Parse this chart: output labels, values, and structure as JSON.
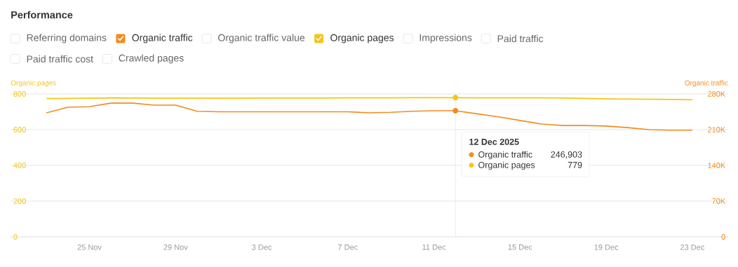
{
  "chart_data": {
    "type": "line",
    "title": "Performance",
    "ylabel": "Organic pages",
    "y2label": "Organic traffic",
    "x": [
      "2025-11-23",
      "2025-11-24",
      "2025-11-25",
      "2025-11-26",
      "2025-11-27",
      "2025-11-28",
      "2025-11-29",
      "2025-11-30",
      "2025-12-01",
      "2025-12-02",
      "2025-12-03",
      "2025-12-04",
      "2025-12-05",
      "2025-12-06",
      "2025-12-07",
      "2025-12-08",
      "2025-12-09",
      "2025-12-10",
      "2025-12-11",
      "2025-12-12",
      "2025-12-13",
      "2025-12-14",
      "2025-12-15",
      "2025-12-16",
      "2025-12-17",
      "2025-12-18",
      "2025-12-19",
      "2025-12-20",
      "2025-12-21",
      "2025-12-22",
      "2025-12-23"
    ],
    "series": [
      {
        "name": "Organic traffic",
        "color": "#f28c1e",
        "axis": "y2",
        "values": [
          243000,
          254000,
          255000,
          262000,
          262000,
          258000,
          258000,
          246000,
          245000,
          245000,
          245000,
          245000,
          245000,
          245000,
          245000,
          243000,
          244000,
          246000,
          247000,
          247000,
          241000,
          235000,
          228000,
          221000,
          218000,
          218000,
          217000,
          214000,
          210000,
          209000,
          209000
        ]
      },
      {
        "name": "Organic pages",
        "color": "#f5c518",
        "values": [
          774,
          775,
          776,
          778,
          777,
          776,
          776,
          776,
          776,
          776,
          777,
          777,
          777,
          777,
          778,
          778,
          778,
          779,
          779,
          779,
          778,
          778,
          778,
          778,
          777,
          775,
          772,
          771,
          770,
          769,
          767
        ]
      }
    ],
    "xlim": [
      "2025-11-21T08:00",
      "2025-12-24T16:00"
    ],
    "xticks": [
      {
        "value": "2025-11-25",
        "label": "25 Nov"
      },
      {
        "value": "2025-11-29",
        "label": "29 Nov"
      },
      {
        "value": "2025-12-03",
        "label": "3 Dec"
      },
      {
        "value": "2025-12-07",
        "label": "7 Dec"
      },
      {
        "value": "2025-12-11",
        "label": "11 Dec"
      },
      {
        "value": "2025-12-15",
        "label": "15 Dec"
      },
      {
        "value": "2025-12-19",
        "label": "19 Dec"
      },
      {
        "value": "2025-12-23",
        "label": "23 Dec"
      }
    ],
    "ylim": [
      0,
      800
    ],
    "yticks": [
      0,
      200,
      400,
      600,
      800
    ],
    "y2lim": [
      0,
      280000
    ],
    "y2ticks": [
      0,
      {
        "value": 70000,
        "label": "70K"
      },
      {
        "value": 140000,
        "label": "140K"
      },
      {
        "value": 210000,
        "label": "210K"
      },
      {
        "value": 280000,
        "label": "280K"
      }
    ],
    "grid": "y",
    "legend": "top",
    "marker": "none",
    "line_style": "solid",
    "ref_lines": [
      {
        "axis": "x",
        "value": "2025-12-12",
        "label": "12 Dec 2025",
        "color": "#e8e8e8"
      }
    ],
    "annotations": [
      "Referring domains",
      "Organic traffic value",
      "Impressions",
      "Paid traffic",
      "Paid traffic cost",
      "Crawled pages",
      "246,903",
      "779"
    ]
  }
}
